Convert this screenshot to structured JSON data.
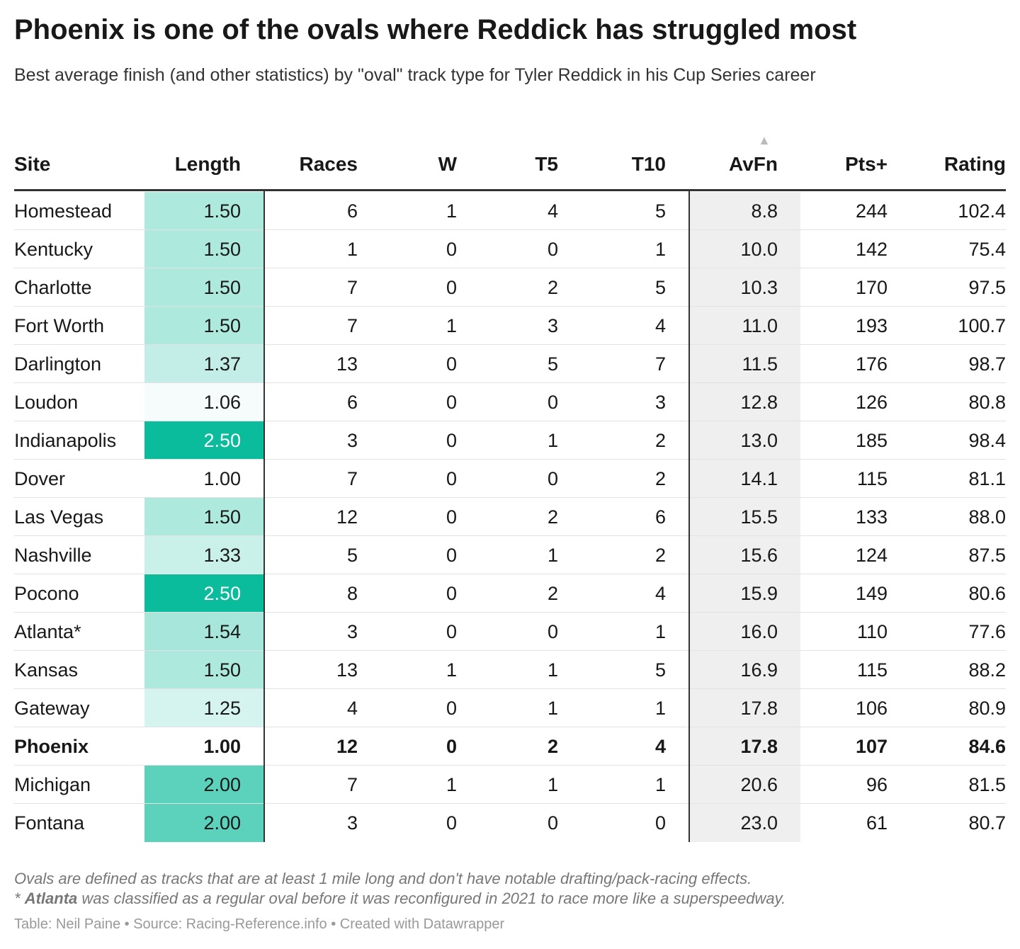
{
  "header": {
    "title": "Phoenix is one of the ovals where Reddick has struggled most",
    "subtitle": "Best average finish (and other statistics) by \"oval\" track type for Tyler Reddick in his Cup Series career"
  },
  "table": {
    "columns": [
      "Site",
      "Length",
      "Races",
      "W",
      "T5",
      "T10",
      "AvFn",
      "Pts+",
      "Rating"
    ],
    "sort_column": 6,
    "shaded_column": 1,
    "shade_colors": [
      "#ffffff",
      "#0bbc9c"
    ],
    "grey_column": 6,
    "bold_row": 14,
    "rows": [
      [
        "Homestead",
        "1.50",
        "6",
        "1",
        "4",
        "5",
        "8.8",
        "244",
        "102.4"
      ],
      [
        "Kentucky",
        "1.50",
        "1",
        "0",
        "0",
        "1",
        "10.0",
        "142",
        "75.4"
      ],
      [
        "Charlotte",
        "1.50",
        "7",
        "0",
        "2",
        "5",
        "10.3",
        "170",
        "97.5"
      ],
      [
        "Fort Worth",
        "1.50",
        "7",
        "1",
        "3",
        "4",
        "11.0",
        "193",
        "100.7"
      ],
      [
        "Darlington",
        "1.37",
        "13",
        "0",
        "5",
        "7",
        "11.5",
        "176",
        "98.7"
      ],
      [
        "Loudon",
        "1.06",
        "6",
        "0",
        "0",
        "3",
        "12.8",
        "126",
        "80.8"
      ],
      [
        "Indianapolis",
        "2.50",
        "3",
        "0",
        "1",
        "2",
        "13.0",
        "185",
        "98.4"
      ],
      [
        "Dover",
        "1.00",
        "7",
        "0",
        "0",
        "2",
        "14.1",
        "115",
        "81.1"
      ],
      [
        "Las Vegas",
        "1.50",
        "12",
        "0",
        "2",
        "6",
        "15.5",
        "133",
        "88.0"
      ],
      [
        "Nashville",
        "1.33",
        "5",
        "0",
        "1",
        "2",
        "15.6",
        "124",
        "87.5"
      ],
      [
        "Pocono",
        "2.50",
        "8",
        "0",
        "2",
        "4",
        "15.9",
        "149",
        "80.6"
      ],
      [
        "Atlanta*",
        "1.54",
        "3",
        "0",
        "0",
        "1",
        "16.0",
        "110",
        "77.6"
      ],
      [
        "Kansas",
        "1.50",
        "13",
        "1",
        "1",
        "5",
        "16.9",
        "115",
        "88.2"
      ],
      [
        "Gateway",
        "1.25",
        "4",
        "0",
        "1",
        "1",
        "17.8",
        "106",
        "80.9"
      ],
      [
        "Phoenix",
        "1.00",
        "12",
        "0",
        "2",
        "4",
        "17.8",
        "107",
        "84.6"
      ],
      [
        "Michigan",
        "2.00",
        "7",
        "1",
        "1",
        "1",
        "20.6",
        "96",
        "81.5"
      ],
      [
        "Fontana",
        "2.00",
        "3",
        "0",
        "0",
        "0",
        "23.0",
        "61",
        "80.7"
      ]
    ]
  },
  "notes": [
    "Ovals are defined as tracks that are at least 1 mile long and don't have notable drafting/pack-racing effects.",
    [
      "* ",
      "Atlanta",
      " was classified as a regular oval before it was reconfigured in 2021 to race more like a superspeedway."
    ]
  ],
  "source": "Table: Neil Paine • Source: Racing-Reference.info • Created with Datawrapper"
}
